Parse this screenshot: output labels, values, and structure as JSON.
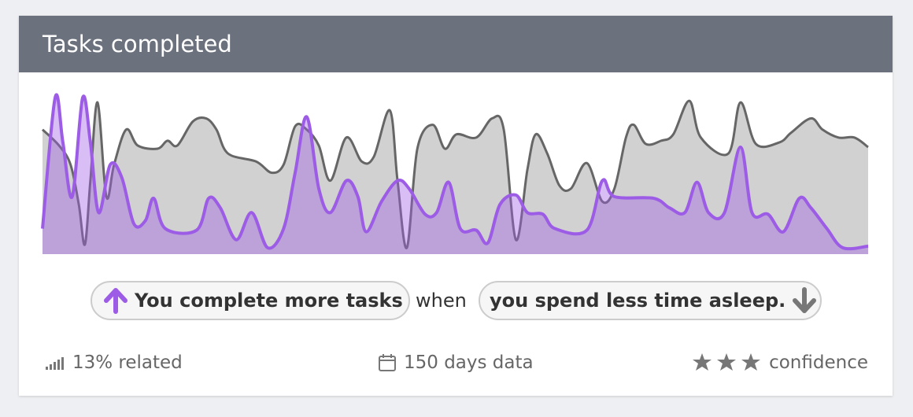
{
  "header": {
    "title": "Tasks completed"
  },
  "chart_data": {
    "type": "area",
    "xlim": [
      0,
      150
    ],
    "ylim": [
      0,
      100
    ],
    "series": [
      {
        "color": "#666666",
        "x": [
          0,
          3,
          5.1,
          6.6,
          7.7,
          8.7,
          10,
          11.6,
          13,
          15.2,
          17.3,
          20.9,
          22.7,
          24.5,
          27.3,
          29.7,
          31.6,
          33.7,
          38.8,
          41.6,
          43.8,
          45.9,
          48,
          50.2,
          52.3,
          55.2,
          58,
          60.2,
          63.1,
          64.5,
          66.2,
          68.1,
          70.9,
          73.1,
          75.2,
          78.8,
          81.7,
          83.8,
          86,
          88.1,
          89.6,
          91.7,
          93.9,
          96,
          98.9,
          101.7,
          103.9,
          106,
          107.4,
          109.6,
          112.4,
          114.6,
          117.5,
          119.6,
          124.6,
          126.8,
          129.6,
          133.9,
          136,
          139.6,
          141.7,
          144.6,
          147.5,
          150
        ],
        "values": [
          78,
          68,
          56,
          31,
          6,
          46,
          95,
          36,
          56,
          78,
          68,
          66,
          71,
          68,
          83,
          85,
          78,
          63,
          58,
          51,
          56,
          80,
          78,
          68,
          46,
          73,
          58,
          61,
          90,
          46,
          4,
          66,
          81,
          66,
          75,
          73,
          85,
          78,
          9,
          53,
          75,
          63,
          43,
          41,
          57,
          33,
          41,
          73,
          81,
          69,
          71,
          75,
          96,
          73,
          63,
          95,
          69,
          70,
          76,
          85,
          78,
          73,
          73,
          67
        ]
      },
      {
        "color": "#9d5ce6",
        "x": [
          0,
          2.3,
          3.7,
          5.4,
          7.3,
          8.7,
          10.2,
          12.3,
          14.4,
          16.6,
          18.7,
          20.2,
          22.3,
          28,
          30.2,
          32.3,
          35.2,
          38,
          40.9,
          43.8,
          45.9,
          48,
          50.2,
          52.3,
          55.2,
          57.3,
          58.8,
          61.6,
          64.5,
          66.6,
          69.5,
          71.6,
          73.8,
          75.9,
          78.8,
          80.9,
          83.1,
          86,
          88.1,
          90.9,
          93.1,
          98.9,
          101.7,
          103.9,
          111,
          113.9,
          116.7,
          118.9,
          121,
          123.9,
          126.8,
          128.9,
          131.8,
          134.6,
          137.5,
          139.6,
          142.5,
          145.4,
          150
        ],
        "values": [
          16,
          98,
          70,
          36,
          98,
          70,
          26,
          56,
          48,
          19,
          21,
          35,
          16,
          15,
          35,
          29,
          9,
          26,
          4,
          16,
          51,
          86,
          41,
          26,
          46,
          36,
          14,
          33,
          46,
          41,
          25,
          26,
          45,
          16,
          15,
          7,
          31,
          37,
          26,
          25,
          16,
          15,
          46,
          36,
          35,
          29,
          26,
          45,
          26,
          26,
          67,
          26,
          25,
          14,
          35,
          29,
          16,
          4,
          5
        ]
      }
    ]
  },
  "statement": {
    "cause": "You complete more tasks",
    "connector": "when",
    "effect": "you spend less time asleep."
  },
  "footer": {
    "related": "13% related",
    "days": "150 days data",
    "confidence": "confidence"
  }
}
